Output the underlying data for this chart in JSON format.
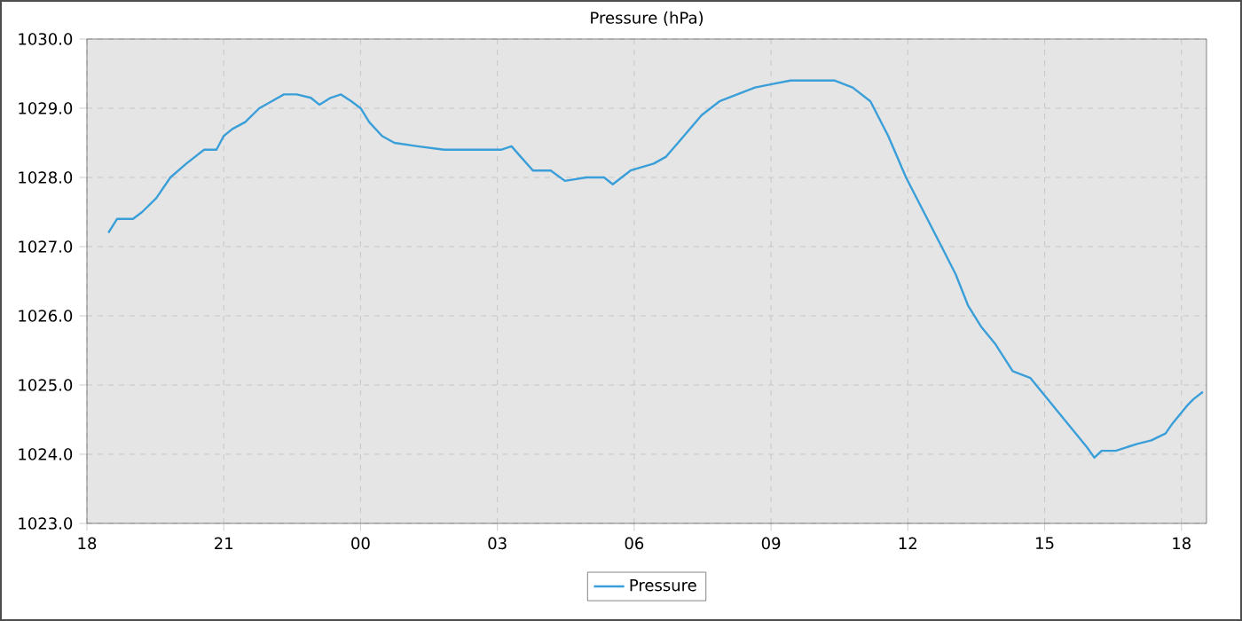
{
  "chart_data": {
    "type": "line",
    "title": "Pressure (hPa)",
    "x": [
      18.47,
      18.66,
      19.01,
      19.21,
      19.52,
      19.83,
      20.18,
      20.57,
      20.84,
      21.0,
      21.19,
      21.47,
      21.78,
      22.05,
      22.32,
      22.6,
      22.91,
      23.1,
      23.34,
      23.57,
      23.8,
      24.0,
      24.19,
      24.47,
      24.74,
      25.25,
      25.83,
      26.61,
      27.08,
      27.31,
      27.51,
      27.78,
      28.17,
      28.48,
      28.95,
      29.34,
      29.53,
      29.92,
      30.43,
      30.7,
      31.09,
      31.48,
      31.87,
      32.26,
      32.65,
      33.04,
      33.43,
      34.01,
      34.4,
      34.79,
      35.18,
      35.57,
      35.96,
      36.35,
      36.74,
      37.05,
      37.32,
      37.6,
      37.91,
      38.3,
      38.69,
      39.0,
      39.31,
      39.62,
      39.93,
      40.09,
      40.25,
      40.56,
      41.03,
      41.34,
      41.65,
      41.81,
      42.12,
      42.27,
      42.47
    ],
    "series": [
      {
        "name": "Pressure",
        "color": "#3a9fd9",
        "values": [
          1027.2,
          1027.4,
          1027.4,
          1027.5,
          1027.7,
          1028.0,
          1028.2,
          1028.4,
          1028.4,
          1028.6,
          1028.7,
          1028.8,
          1029.0,
          1029.1,
          1029.2,
          1029.2,
          1029.15,
          1029.05,
          1029.15,
          1029.2,
          1029.1,
          1029.0,
          1028.8,
          1028.6,
          1028.5,
          1028.45,
          1028.4,
          1028.4,
          1028.4,
          1028.45,
          1028.3,
          1028.1,
          1028.1,
          1027.95,
          1028.0,
          1028.0,
          1027.9,
          1028.1,
          1028.2,
          1028.3,
          1028.6,
          1028.9,
          1029.1,
          1029.2,
          1029.3,
          1029.35,
          1029.4,
          1029.4,
          1029.4,
          1029.3,
          1029.1,
          1028.6,
          1028.0,
          1027.5,
          1027.0,
          1026.6,
          1026.15,
          1025.85,
          1025.6,
          1025.2,
          1025.1,
          1024.85,
          1024.6,
          1024.35,
          1024.1,
          1023.95,
          1024.05,
          1024.05,
          1024.15,
          1024.2,
          1024.3,
          1024.45,
          1024.7,
          1024.8,
          1024.9
        ]
      }
    ],
    "xlim": [
      18,
      42.55
    ],
    "xticks": [
      {
        "value": 18,
        "label": "18"
      },
      {
        "value": 21,
        "label": "21"
      },
      {
        "value": 24,
        "label": "00"
      },
      {
        "value": 27,
        "label": "03"
      },
      {
        "value": 30,
        "label": "06"
      },
      {
        "value": 33,
        "label": "09"
      },
      {
        "value": 36,
        "label": "12"
      },
      {
        "value": 39,
        "label": "15"
      },
      {
        "value": 42,
        "label": "18"
      }
    ],
    "ylim": [
      1023,
      1030
    ],
    "yticks": [
      {
        "value": 1023,
        "label": "1023.0"
      },
      {
        "value": 1024,
        "label": "1024.0"
      },
      {
        "value": 1025,
        "label": "1025.0"
      },
      {
        "value": 1026,
        "label": "1026.0"
      },
      {
        "value": 1027,
        "label": "1027.0"
      },
      {
        "value": 1028,
        "label": "1028.0"
      },
      {
        "value": 1029,
        "label": "1029.0"
      },
      {
        "value": 1030,
        "label": "1030.0"
      }
    ],
    "grid": true,
    "legend": "bottom"
  }
}
